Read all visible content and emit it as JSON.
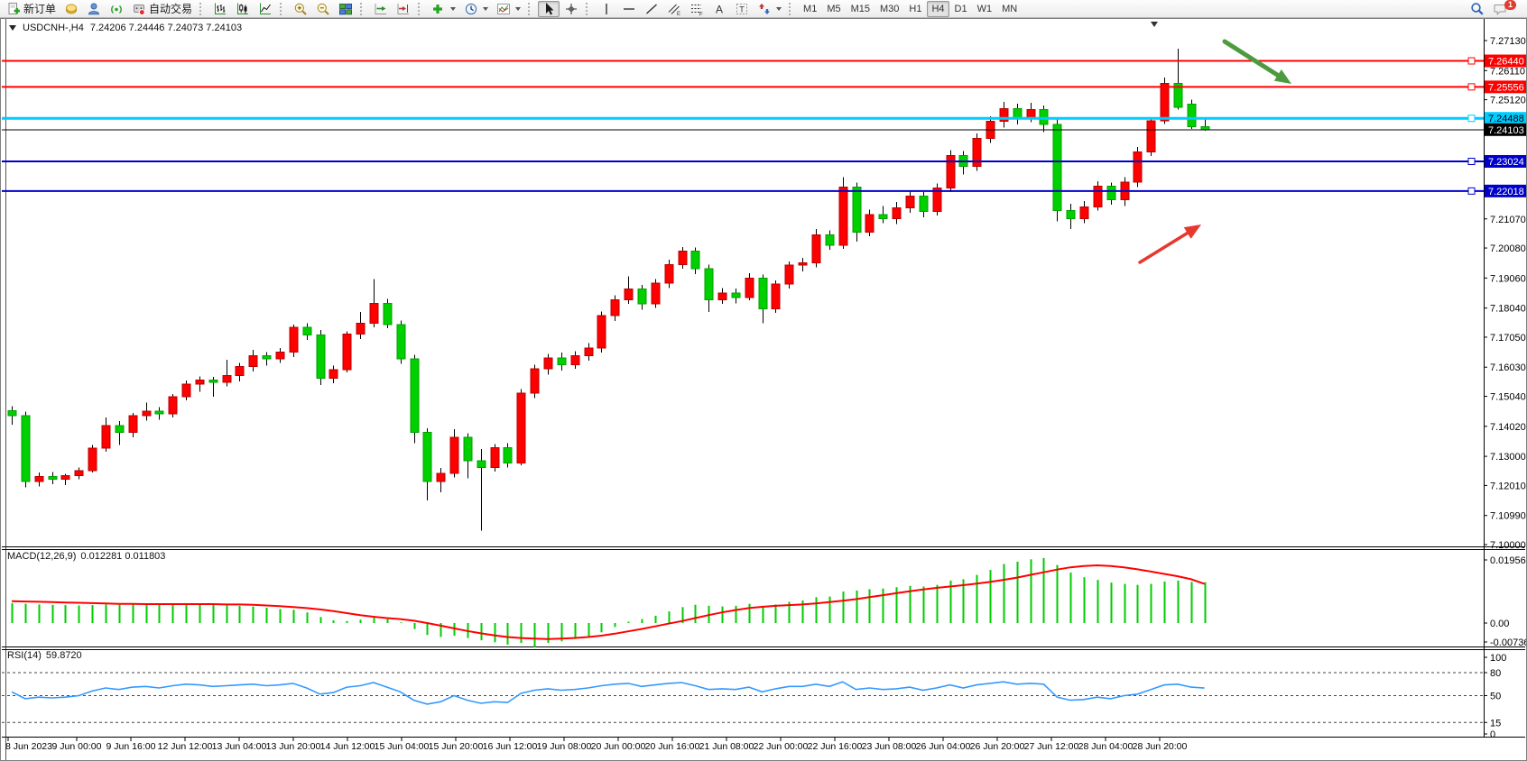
{
  "toolbar": {
    "new_order_label": "新订单",
    "auto_trading_label": "自动交易",
    "timeframes": [
      "M1",
      "M5",
      "M15",
      "M30",
      "H1",
      "H4",
      "D1",
      "W1",
      "MN"
    ],
    "active_timeframe": "H4",
    "notification_count": "1"
  },
  "chart": {
    "title_symbol": "USDCNH-,H4",
    "title_ohlc": "7.24206 7.24446 7.24073 7.24103"
  },
  "chart_data": {
    "type": "candlestick",
    "symbol": "USDCNH-",
    "timeframe": "H4",
    "last_bar": {
      "open": 7.24206,
      "high": 7.24446,
      "low": 7.24073,
      "close": 7.24103
    },
    "price_axis": {
      "visible_min": 7.0988,
      "visible_max": 7.2725,
      "ticks": [
        "7.27130",
        "7.26110",
        "7.25120",
        "7.21070",
        "7.20080",
        "7.19060",
        "7.18040",
        "7.17050",
        "7.16030",
        "7.15040",
        "7.14020",
        "7.13000",
        "7.12010",
        "7.10990",
        "7.10000"
      ]
    },
    "time_labels": [
      "8 Jun 2023",
      "9 Jun 00:00",
      "9 Jun 16:00",
      "12 Jun 12:00",
      "13 Jun 04:00",
      "13 Jun 20:00",
      "14 Jun 12:00",
      "15 Jun 04:00",
      "15 Jun 20:00",
      "16 Jun 12:00",
      "19 Jun 08:00",
      "20 Jun 00:00",
      "20 Jun 16:00",
      "21 Jun 08:00",
      "22 Jun 00:00",
      "22 Jun 16:00",
      "23 Jun 08:00",
      "26 Jun 04:00",
      "26 Jun 20:00",
      "27 Jun 12:00",
      "28 Jun 04:00",
      "28 Jun 20:00"
    ],
    "candles": [
      [
        7.1455,
        7.147,
        7.1408,
        7.1438
      ],
      [
        7.1438,
        7.1452,
        7.1195,
        7.1215
      ],
      [
        7.1215,
        7.1245,
        7.1198,
        7.1232
      ],
      [
        7.1232,
        7.1246,
        7.1205,
        7.1222
      ],
      [
        7.1222,
        7.124,
        7.1202,
        7.1235
      ],
      [
        7.1235,
        7.1262,
        7.1222,
        7.1252
      ],
      [
        7.1252,
        7.1338,
        7.1245,
        7.1328
      ],
      [
        7.1328,
        7.1432,
        7.1315,
        7.1405
      ],
      [
        7.1405,
        7.142,
        7.1338,
        7.1382
      ],
      [
        7.1382,
        7.1448,
        7.1365,
        7.1438
      ],
      [
        7.1438,
        7.1482,
        7.1422,
        7.1453
      ],
      [
        7.1453,
        7.1468,
        7.1425,
        7.1444
      ],
      [
        7.1444,
        7.1512,
        7.1432,
        7.1502
      ],
      [
        7.1502,
        7.1558,
        7.149,
        7.1546
      ],
      [
        7.1546,
        7.1572,
        7.152,
        7.156
      ],
      [
        7.156,
        7.157,
        7.1502,
        7.1552
      ],
      [
        7.1552,
        7.1628,
        7.1538,
        7.1575
      ],
      [
        7.1575,
        7.1618,
        7.1555,
        7.1605
      ],
      [
        7.1605,
        7.1662,
        7.1588,
        7.1642
      ],
      [
        7.1642,
        7.1655,
        7.1608,
        7.1632
      ],
      [
        7.1632,
        7.1668,
        7.1618,
        7.1655
      ],
      [
        7.1655,
        7.1748,
        7.1638,
        7.1738
      ],
      [
        7.1738,
        7.1752,
        7.1695,
        7.1712
      ],
      [
        7.1712,
        7.173,
        7.1542,
        7.1565
      ],
      [
        7.1565,
        7.1608,
        7.1548,
        7.1595
      ],
      [
        7.1595,
        7.1725,
        7.1585,
        7.1715
      ],
      [
        7.1715,
        7.179,
        7.1698,
        7.1752
      ],
      [
        7.1752,
        7.1902,
        7.1738,
        7.182
      ],
      [
        7.182,
        7.1835,
        7.1735,
        7.1748
      ],
      [
        7.1748,
        7.1762,
        7.1615,
        7.1632
      ],
      [
        7.1632,
        7.1645,
        7.1345,
        7.1382
      ],
      [
        7.1382,
        7.1395,
        7.115,
        7.1215
      ],
      [
        7.1215,
        7.126,
        7.1178,
        7.1242
      ],
      [
        7.1242,
        7.1392,
        7.1228,
        7.1365
      ],
      [
        7.1365,
        7.1378,
        7.1225,
        7.1285
      ],
      [
        7.1285,
        7.1325,
        7.1048,
        7.1262
      ],
      [
        7.1262,
        7.1342,
        7.1248,
        7.133
      ],
      [
        7.133,
        7.1345,
        7.1262,
        7.1278
      ],
      [
        7.1278,
        7.1528,
        7.127,
        7.1515
      ],
      [
        7.1515,
        7.1612,
        7.1498,
        7.1598
      ],
      [
        7.1598,
        7.1648,
        7.1578,
        7.1635
      ],
      [
        7.1635,
        7.1652,
        7.1592,
        7.1612
      ],
      [
        7.1612,
        7.1658,
        7.1598,
        7.1642
      ],
      [
        7.1642,
        7.1685,
        7.1625,
        7.1668
      ],
      [
        7.1668,
        7.1792,
        7.1652,
        7.1778
      ],
      [
        7.1778,
        7.1848,
        7.176,
        7.1832
      ],
      [
        7.1832,
        7.1912,
        7.1818,
        7.1868
      ],
      [
        7.1868,
        7.1882,
        7.1798,
        7.1818
      ],
      [
        7.1818,
        7.1902,
        7.1805,
        7.1888
      ],
      [
        7.1888,
        7.1968,
        7.1872,
        7.1952
      ],
      [
        7.1952,
        7.2012,
        7.1938,
        7.1998
      ],
      [
        7.1998,
        7.201,
        7.192,
        7.1938
      ],
      [
        7.1938,
        7.1952,
        7.179,
        7.1832
      ],
      [
        7.1832,
        7.1872,
        7.1818,
        7.1855
      ],
      [
        7.1855,
        7.187,
        7.182,
        7.184
      ],
      [
        7.184,
        7.1922,
        7.183,
        7.1905
      ],
      [
        7.1905,
        7.1918,
        7.1752,
        7.1802
      ],
      [
        7.1802,
        7.1898,
        7.1788,
        7.1885
      ],
      [
        7.1885,
        7.1962,
        7.187,
        7.195
      ],
      [
        7.195,
        7.1975,
        7.1928,
        7.1958
      ],
      [
        7.1958,
        7.2072,
        7.1942,
        7.2052
      ],
      [
        7.2052,
        7.2068,
        7.2002,
        7.2018
      ],
      [
        7.2018,
        7.2248,
        7.2005,
        7.2215
      ],
      [
        7.2215,
        7.223,
        7.203,
        7.2062
      ],
      [
        7.2062,
        7.2138,
        7.2048,
        7.2122
      ],
      [
        7.2122,
        7.215,
        7.2092,
        7.2108
      ],
      [
        7.2108,
        7.2165,
        7.209,
        7.2145
      ],
      [
        7.2145,
        7.22,
        7.2128,
        7.2185
      ],
      [
        7.2185,
        7.2198,
        7.2112,
        7.2132
      ],
      [
        7.2132,
        7.2228,
        7.2118,
        7.2212
      ],
      [
        7.2212,
        7.234,
        7.2198,
        7.2322
      ],
      [
        7.2322,
        7.2338,
        7.2258,
        7.2285
      ],
      [
        7.2285,
        7.2398,
        7.227,
        7.238
      ],
      [
        7.238,
        7.2455,
        7.2365,
        7.2438
      ],
      [
        7.2438,
        7.2505,
        7.2418,
        7.2482
      ],
      [
        7.2482,
        7.2498,
        7.2428,
        7.2448
      ],
      [
        7.2448,
        7.2502,
        7.2435,
        7.2478
      ],
      [
        7.2478,
        7.2492,
        7.2402,
        7.2428
      ],
      [
        7.2428,
        7.2445,
        7.2098,
        7.2135
      ],
      [
        7.2135,
        7.2158,
        7.2072,
        7.2108
      ],
      [
        7.2108,
        7.2168,
        7.2092,
        7.2148
      ],
      [
        7.2148,
        7.2235,
        7.2135,
        7.2218
      ],
      [
        7.2218,
        7.223,
        7.2155,
        7.2172
      ],
      [
        7.2172,
        7.2248,
        7.215,
        7.2232
      ],
      [
        7.2232,
        7.2352,
        7.2215,
        7.2335
      ],
      [
        7.2335,
        7.2448,
        7.232,
        7.2441
      ],
      [
        7.2441,
        7.2588,
        7.243,
        7.2567
      ],
      [
        7.2567,
        7.2685,
        7.2478,
        7.2487
      ],
      [
        7.2497,
        7.2512,
        7.2412,
        7.242
      ],
      [
        7.24206,
        7.24446,
        7.24073,
        7.24103
      ]
    ],
    "hlines": [
      {
        "price": 7.2644,
        "label": "7.26440",
        "color": "#FF0000",
        "text_color": "#FFFFFF",
        "width": 2
      },
      {
        "price": 7.25556,
        "label": "7.25556",
        "color": "#FF0000",
        "text_color": "#FFFFFF",
        "width": 2
      },
      {
        "price": 7.24488,
        "label": "7.24488",
        "color": "#00CCFF",
        "text_color": "#000000",
        "width": 3
      },
      {
        "price": 7.23024,
        "label": "7.23024",
        "color": "#0000CC",
        "text_color": "#FFFFFF",
        "width": 2
      },
      {
        "price": 7.22018,
        "label": "7.22018",
        "color": "#0000CC",
        "text_color": "#FFFFFF",
        "width": 2
      }
    ],
    "current_price": {
      "value": 7.24103,
      "label": "7.24103",
      "line_color": "#000000",
      "badge_bg": "#000000",
      "text_color": "#FFFFFF"
    },
    "colors": {
      "bull": "#FF0000",
      "bull_border": "#BB0000",
      "bear": "#00CF00",
      "bear_border": "#00A000",
      "wick": "#000000"
    },
    "indicators": {
      "macd": {
        "name": "MACD(12,26,9)",
        "values_text": "0.012281 0.011803",
        "bar_color": "#00CC00",
        "signal_color": "#FF0000",
        "axis_ticks": [
          "0.019561",
          "0.00",
          "-0.007367"
        ],
        "hist": [
          0.006,
          0.0058,
          0.0056,
          0.0055,
          0.0054,
          0.0053,
          0.0054,
          0.0056,
          0.0055,
          0.0056,
          0.0057,
          0.0055,
          0.0056,
          0.0058,
          0.0057,
          0.0055,
          0.0054,
          0.0052,
          0.005,
          0.0046,
          0.0042,
          0.004,
          0.0032,
          0.0018,
          0.0008,
          0.0006,
          0.001,
          0.0016,
          0.0012,
          0.0002,
          -0.0018,
          -0.0036,
          -0.0042,
          -0.0038,
          -0.0045,
          -0.0052,
          -0.0058,
          -0.0065,
          -0.006,
          -0.0073,
          -0.006,
          -0.0055,
          -0.0048,
          -0.004,
          -0.0028,
          -0.0012,
          0.0004,
          0.0012,
          0.0022,
          0.0035,
          0.0048,
          0.0055,
          0.0052,
          0.005,
          0.0052,
          0.0058,
          0.0052,
          0.0056,
          0.0064,
          0.0068,
          0.0078,
          0.008,
          0.0095,
          0.0098,
          0.0102,
          0.0104,
          0.0108,
          0.0112,
          0.011,
          0.0115,
          0.0128,
          0.0132,
          0.0145,
          0.016,
          0.0178,
          0.0185,
          0.0192,
          0.0196,
          0.0175,
          0.0152,
          0.0138,
          0.013,
          0.0122,
          0.0118,
          0.0115,
          0.0118,
          0.0125,
          0.0128,
          0.0124,
          0.0123
        ],
        "signal": [
          0.0066,
          0.0065,
          0.0064,
          0.0063,
          0.0062,
          0.0061,
          0.006,
          0.0059,
          0.0058,
          0.0058,
          0.0057,
          0.0057,
          0.0057,
          0.0057,
          0.0057,
          0.0057,
          0.0056,
          0.0056,
          0.0055,
          0.0053,
          0.0051,
          0.0048,
          0.0045,
          0.0041,
          0.0036,
          0.003,
          0.0024,
          0.0019,
          0.0015,
          0.0012,
          0.0007,
          0.0,
          -0.0008,
          -0.0016,
          -0.0024,
          -0.0031,
          -0.0037,
          -0.0042,
          -0.0045,
          -0.0047,
          -0.0048,
          -0.0047,
          -0.0045,
          -0.0042,
          -0.0038,
          -0.0032,
          -0.0025,
          -0.0018,
          -0.001,
          -0.0002,
          0.0006,
          0.0015,
          0.0024,
          0.0032,
          0.0039,
          0.0045,
          0.0049,
          0.0052,
          0.0054,
          0.0056,
          0.0059,
          0.0063,
          0.0067,
          0.0072,
          0.0078,
          0.0084,
          0.009,
          0.0096,
          0.0101,
          0.0106,
          0.011,
          0.0114,
          0.0119,
          0.0124,
          0.013,
          0.0137,
          0.0145,
          0.0153,
          0.0161,
          0.0168,
          0.0172,
          0.0174,
          0.0172,
          0.0168,
          0.0162,
          0.0155,
          0.0148,
          0.0141,
          0.0132,
          0.0118
        ]
      },
      "rsi": {
        "name": "RSI(14)",
        "value_text": "59.8720",
        "line_color": "#3399FF",
        "levels": [
          80,
          50,
          15
        ],
        "axis_ticks": [
          "100",
          "80",
          "50",
          "15",
          "0"
        ],
        "values": [
          55,
          46,
          48,
          47,
          48,
          50,
          56,
          60,
          58,
          61,
          62,
          60,
          63,
          65,
          64,
          62,
          63,
          64,
          65,
          63,
          64,
          66,
          60,
          52,
          54,
          61,
          63,
          67,
          61,
          55,
          44,
          39,
          42,
          50,
          44,
          40,
          42,
          41,
          53,
          57,
          59,
          57,
          58,
          60,
          63,
          65,
          66,
          62,
          64,
          66,
          67,
          63,
          58,
          59,
          58,
          61,
          55,
          59,
          62,
          62,
          65,
          62,
          68,
          58,
          60,
          58,
          59,
          61,
          57,
          60,
          64,
          60,
          64,
          66,
          68,
          65,
          66,
          65,
          48,
          44,
          45,
          48,
          46,
          50,
          52,
          58,
          64,
          65,
          61,
          59.87
        ]
      }
    },
    "annotations": {
      "green_arrow": {
        "from": [
          1356,
          25
        ],
        "to": [
          1430,
          72
        ],
        "color": "#4E9B3F",
        "width": 5
      },
      "red_arrow": {
        "from": [
          1262,
          270
        ],
        "to": [
          1330,
          228
        ],
        "color": "#E8372C",
        "width": 3.5
      }
    }
  }
}
